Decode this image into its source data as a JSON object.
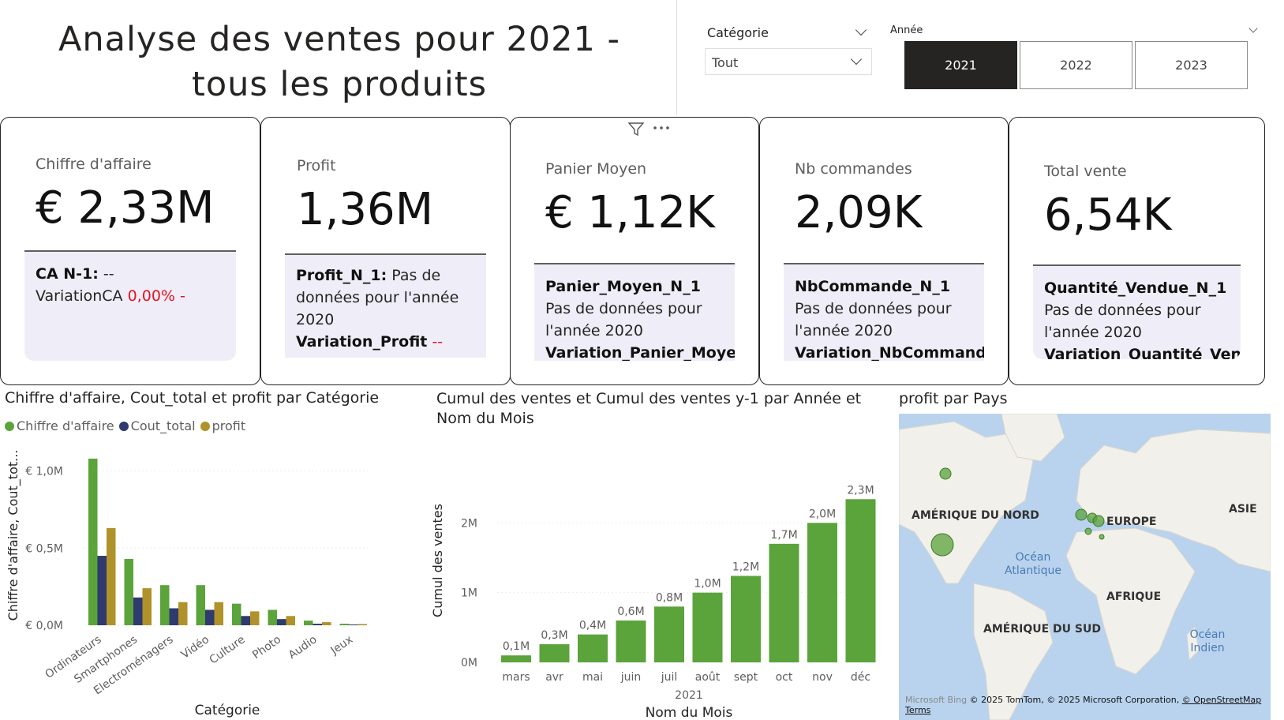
{
  "page": {
    "title_line1": "Analyse des ventes pour 2021 -",
    "title_line2": "tous les produits"
  },
  "slicers": {
    "categorie_label": "Catégorie",
    "categorie_value": "Tout",
    "annee_label": "Année",
    "years": [
      "2021",
      "2022",
      "2023"
    ],
    "selected_year": "2021"
  },
  "cards": [
    {
      "label": "Chiffre d'affaire",
      "value": "€ 2,33M",
      "ref_title": "CA N-1:",
      "ref_value": "--",
      "variation_label": "VariationCA",
      "variation_value": "0,00% -"
    },
    {
      "label": "Profit",
      "value": "1,36M",
      "ref_title": "Profit_N_1:",
      "ref_value": "Pas de données pour l'année 2020",
      "variation_label": "Variation_Profit",
      "variation_value": "--"
    },
    {
      "label": "Panier Moyen",
      "value": "€ 1,12K",
      "ref_title": "Panier_Moyen_N_1",
      "ref_value": "Pas de données pour l'année 2020",
      "variation_label": "Variation_Panier_Moyen",
      "variation_value": ""
    },
    {
      "label": "Nb commandes",
      "value": "2,09K",
      "ref_title": "NbCommande_N_1",
      "ref_value": "Pas de données pour l'année 2020",
      "variation_label": "Variation_NbCommande",
      "variation_value": ""
    },
    {
      "label": "Total vente",
      "value": "6,54K",
      "ref_title": "Quantité_Vendue_N_1",
      "ref_value": "Pas de données pour l'année 2020",
      "variation_label": "Variation_Quantité_Vendue",
      "variation_value": ""
    }
  ],
  "colors": {
    "green": "#5ba33b",
    "navy": "#2f3a6e",
    "gold": "#b0922a",
    "red": "#e81123"
  },
  "chart_data": [
    {
      "type": "bar",
      "title": "Chiffre d'affaire, Cout_total et profit par Catégorie",
      "xlabel": "Catégorie",
      "ylabel": "Chiffre d'affaire, Cout_tot...",
      "categories": [
        "Ordinateurs",
        "Smartphones",
        "Electroménagers",
        "Vidéo",
        "Culture",
        "Photo",
        "Audio",
        "Jeux"
      ],
      "series": [
        {
          "name": "Chiffre d'affaire",
          "values": [
            1.08,
            0.43,
            0.26,
            0.26,
            0.14,
            0.1,
            0.03,
            0.01
          ]
        },
        {
          "name": "Cout_total",
          "values": [
            0.45,
            0.18,
            0.11,
            0.1,
            0.06,
            0.04,
            0.01,
            0.005
          ]
        },
        {
          "name": "profit",
          "values": [
            0.63,
            0.24,
            0.15,
            0.15,
            0.09,
            0.06,
            0.02,
            0.008
          ]
        }
      ],
      "yticks": [
        "€ 0,0M",
        "€ 0,5M",
        "€ 1,0M"
      ],
      "ylim": [
        0,
        1.1
      ],
      "legend": "top-left"
    },
    {
      "type": "bar",
      "title": "Cumul des ventes et Cumul des ventes y-1 par Année et Nom du Mois",
      "xlabel": "Nom du Mois",
      "ylabel": "Cumul des ventes",
      "year_label": "2021",
      "categories": [
        "mars",
        "avr",
        "mai",
        "juin",
        "juil",
        "août",
        "sept",
        "oct",
        "nov",
        "déc"
      ],
      "values": [
        0.1,
        0.26,
        0.4,
        0.6,
        0.8,
        1.0,
        1.24,
        1.7,
        2.0,
        2.34
      ],
      "data_labels": [
        "0,1M",
        "0,3M",
        "0,4M",
        "0,6M",
        "0,8M",
        "1,0M",
        "1,2M",
        "1,7M",
        "2,0M",
        "2,3M"
      ],
      "yticks": [
        "0M",
        "1M",
        "2M"
      ],
      "ylim": [
        0,
        2.4
      ]
    }
  ],
  "map": {
    "title": "profit par Pays",
    "continents": [
      "AMÉRIQUE DU NORD",
      "EUROPE",
      "ASIE",
      "AFRIQUE",
      "AMÉRIQUE DU SUD"
    ],
    "oceans": [
      "Océan Atlantique",
      "Océan Indien"
    ],
    "footer_brand": "Microsoft Bing",
    "footer_copyright": "© 2025 TomTom, © 2025 Microsoft Corporation,",
    "footer_osm": "© OpenStreetMap",
    "footer_terms": "Terms"
  }
}
